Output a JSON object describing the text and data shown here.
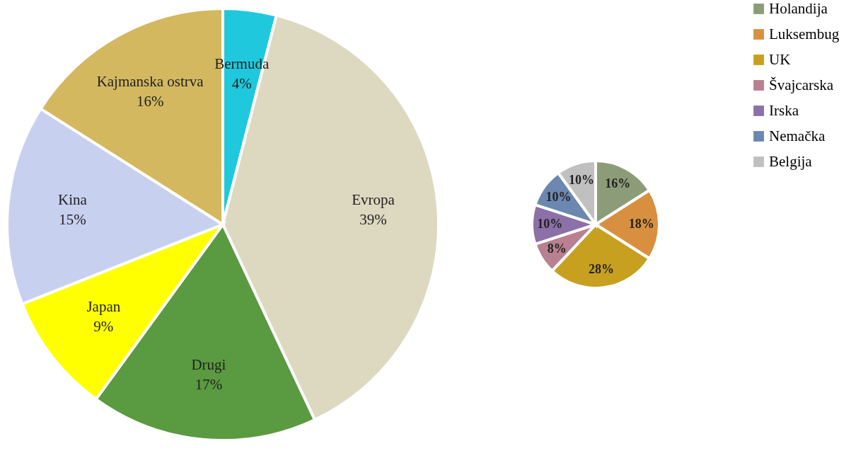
{
  "chart_data": [
    {
      "type": "pie",
      "categories": [
        "Bermuda",
        "Evropa",
        "Drugi",
        "Japan",
        "Kina",
        "Kajmanska ostrva"
      ],
      "values": [
        4,
        39,
        17,
        9,
        15,
        16
      ],
      "colors": [
        "#1fc8dc",
        "#ddd8c0",
        "#5a9a40",
        "#ffff00",
        "#c8d0f0",
        "#d4b860"
      ],
      "value_labels": [
        "4%",
        "39%",
        "17%",
        "9%",
        "15%",
        "16%"
      ]
    },
    {
      "type": "pie",
      "categories": [
        "Holandija",
        "Luksembug",
        "UK",
        "Švajcarska",
        "Irska",
        "Nemačka",
        "Belgija"
      ],
      "values": [
        16,
        18,
        28,
        8,
        10,
        10,
        10
      ],
      "colors": [
        "#8c9c78",
        "#d89040",
        "#c8a020",
        "#b88090",
        "#8c70a8",
        "#6c88b0",
        "#c0c0c0"
      ],
      "value_labels": [
        "16%",
        "18%",
        "28%",
        "8%",
        "10%",
        "10%",
        "10%"
      ],
      "legend": "right"
    }
  ]
}
